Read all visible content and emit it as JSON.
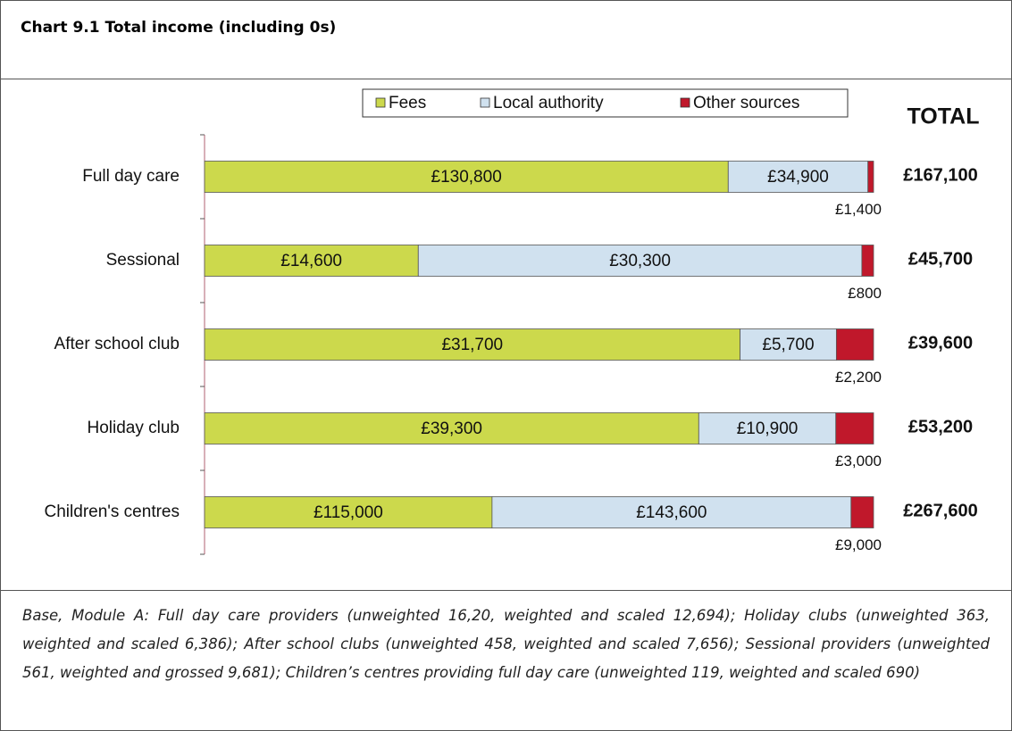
{
  "chart_data": {
    "type": "bar",
    "orientation": "horizontal",
    "stacking": "percent",
    "title": "Chart 9.1 Total income (including 0s)",
    "categories": [
      "Full day care",
      "Sessional",
      "After school club",
      "Holiday club",
      "Children's centres"
    ],
    "series": [
      {
        "name": "Fees",
        "color": "#ccd94c",
        "values": [
          130800,
          14600,
          31700,
          39300,
          115000
        ],
        "value_labels": [
          "£130,800",
          "£14,600",
          "£31,700",
          "£39,300",
          "£115,000"
        ]
      },
      {
        "name": "Local authority",
        "color": "#d0e1ef",
        "values": [
          34900,
          30300,
          5700,
          10900,
          143600
        ],
        "value_labels": [
          "£34,900",
          "£30,300",
          "£5,700",
          "£10,900",
          "£143,600"
        ]
      },
      {
        "name": "Other sources",
        "color": "#c0182b",
        "values": [
          1400,
          800,
          2200,
          3000,
          9000
        ],
        "value_labels": [
          "£1,400",
          "£800",
          "£2,200",
          "£3,000",
          "£9,000"
        ]
      }
    ],
    "totals_label": "TOTAL",
    "totals": [
      167100,
      45700,
      39600,
      53200,
      267600
    ],
    "totals_labels": [
      "£167,100",
      "£45,700",
      "£39,600",
      "£53,200",
      "£267,600"
    ],
    "note": "Base, Module A: Full day care providers (unweighted 16,20, weighted and scaled 12,694); Holiday clubs (unweighted 363, weighted and scaled 6,386); After school clubs (unweighted 458, weighted and scaled 7,656); Sessional providers (unweighted 561, weighted and grossed 9,681); Children’s centres providing full day care (unweighted 119, weighted and scaled 690)"
  }
}
